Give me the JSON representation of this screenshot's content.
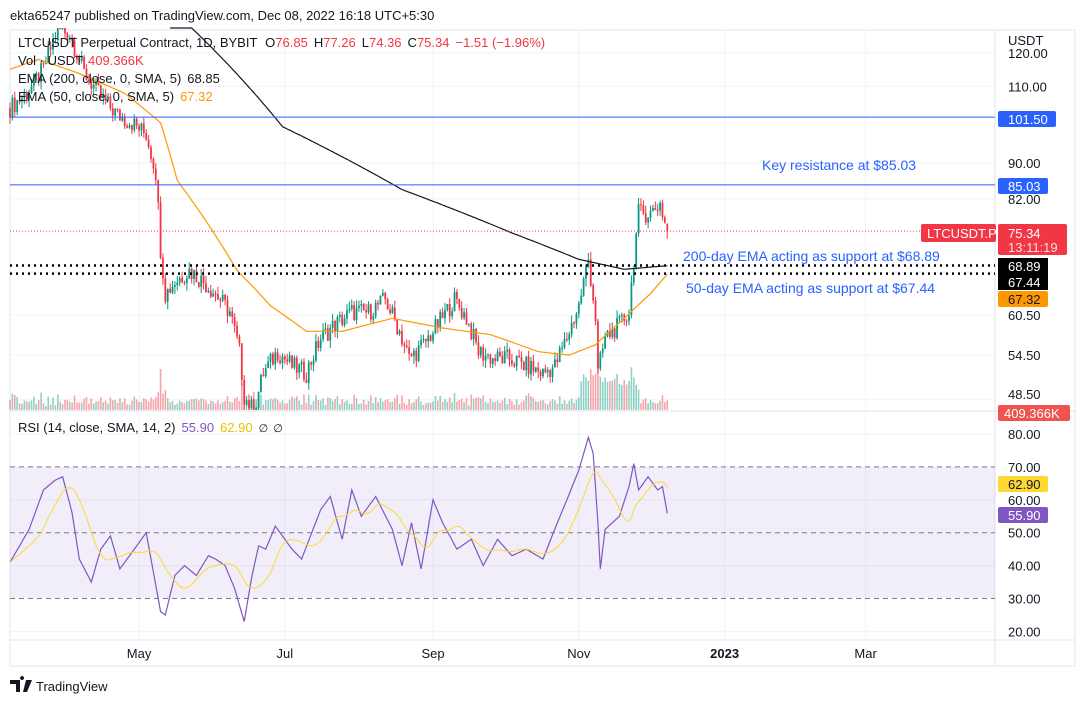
{
  "header": {
    "published": "ekta65247 published on TradingView.com, Dec 08, 2022 16:18 UTC+5:30"
  },
  "legend": {
    "symbol": "LTCUSDT Perpetual Contract, 1D, BYBIT",
    "o_label": "O",
    "o": "76.85",
    "h_label": "H",
    "h": "77.26",
    "l_label": "L",
    "l": "74.36",
    "c_label": "C",
    "c": "75.34",
    "change": "−1.51 (−1.96%)",
    "vol_label": "Vol · USDT",
    "vol": "409.366K",
    "ema200_label": "EMA (200, close, 0, SMA, 5)",
    "ema200": "68.85",
    "ema50_label": "EMA (50, close, 0, SMA, 5)",
    "ema50": "67.32",
    "rsi_label": "RSI (14, close, SMA, 14, 2)",
    "rsi": "55.90",
    "rsi_ma": "62.90",
    "na1": "∅",
    "na2": "∅"
  },
  "price_axis": {
    "currency": "USDT",
    "ticks": [
      "120.00",
      "110.00",
      "90.00",
      "82.00",
      "60.50",
      "54.50",
      "48.50"
    ]
  },
  "rsi_axis": {
    "ticks": [
      "80.00",
      "70.00",
      "60.00",
      "50.00",
      "40.00",
      "30.00",
      "20.00"
    ]
  },
  "time_axis": {
    "ticks": [
      "May",
      "Jul",
      "Sep",
      "Nov",
      "2023",
      "Mar"
    ]
  },
  "labels": {
    "r1": "101.50",
    "r2": "85.03",
    "sym": "LTCUSDT.P",
    "last": "75.34",
    "countdown": "13:11:19",
    "s1": "68.89",
    "s2": "67.44",
    "ema50": "67.32",
    "vol": "409.366K",
    "rsi_ma": "62.90",
    "rsi": "55.90"
  },
  "annotations": {
    "resistance": "Key resistance at $85.03",
    "ema200_support": "200-day EMA acting as support at $68.89",
    "ema50_support": "50-day EMA acting as support at $67.44"
  },
  "footer": {
    "brand": "TradingView"
  },
  "colors": {
    "up": "#089981",
    "down": "#f23645",
    "ema200": "#131722",
    "ema50": "#ff9800",
    "rsi": "#7e57c2",
    "rsi_ma": "#fdd835",
    "level": "#2962ff"
  },
  "chart_data": {
    "type": "candlestick",
    "scale": "log",
    "levels": [
      101.5,
      85.03,
      68.89,
      67.44
    ],
    "last_price": 75.34,
    "close_path": [
      [
        "2022-03-08",
        104
      ],
      [
        "2022-03-15",
        108
      ],
      [
        "2022-03-22",
        115
      ],
      [
        "2022-03-28",
        128
      ],
      [
        "2022-04-02",
        126
      ],
      [
        "2022-04-08",
        114
      ],
      [
        "2022-04-15",
        107
      ],
      [
        "2022-04-22",
        102
      ],
      [
        "2022-04-28",
        100
      ],
      [
        "2022-05-04",
        97
      ],
      [
        "2022-05-08",
        88
      ],
      [
        "2022-05-10",
        72
      ],
      [
        "2022-05-12",
        64
      ],
      [
        "2022-05-16",
        66
      ],
      [
        "2022-05-22",
        68
      ],
      [
        "2022-05-28",
        66
      ],
      [
        "2022-06-02",
        64
      ],
      [
        "2022-06-08",
        61
      ],
      [
        "2022-06-12",
        55
      ],
      [
        "2022-06-14",
        49
      ],
      [
        "2022-06-18",
        47
      ],
      [
        "2022-06-22",
        52
      ],
      [
        "2022-06-28",
        55
      ],
      [
        "2022-07-04",
        53
      ],
      [
        "2022-07-10",
        52
      ],
      [
        "2022-07-16",
        57
      ],
      [
        "2022-07-22",
        59
      ],
      [
        "2022-07-29",
        61
      ],
      [
        "2022-08-05",
        61
      ],
      [
        "2022-08-12",
        63
      ],
      [
        "2022-08-18",
        58
      ],
      [
        "2022-08-22",
        54
      ],
      [
        "2022-08-28",
        56
      ],
      [
        "2022-09-03",
        59
      ],
      [
        "2022-09-10",
        63
      ],
      [
        "2022-09-15",
        60
      ],
      [
        "2022-09-20",
        55
      ],
      [
        "2022-09-26",
        54
      ],
      [
        "2022-10-03",
        54
      ],
      [
        "2022-10-10",
        53
      ],
      [
        "2022-10-17",
        52
      ],
      [
        "2022-10-22",
        53
      ],
      [
        "2022-10-27",
        57
      ],
      [
        "2022-11-01",
        62
      ],
      [
        "2022-11-05",
        70
      ],
      [
        "2022-11-08",
        60
      ],
      [
        "2022-11-09",
        52
      ],
      [
        "2022-11-12",
        57
      ],
      [
        "2022-11-18",
        59
      ],
      [
        "2022-11-22",
        61
      ],
      [
        "2022-11-24",
        70
      ],
      [
        "2022-11-26",
        79
      ],
      [
        "2022-12-01",
        79
      ],
      [
        "2022-12-05",
        81
      ],
      [
        "2022-12-07",
        77
      ],
      [
        "2022-12-08",
        75.34
      ]
    ],
    "ema200": [
      [
        "2022-05-14",
        135
      ],
      [
        "2022-06-30",
        99
      ],
      [
        "2022-08-19",
        84
      ],
      [
        "2022-10-04",
        75
      ],
      [
        "2022-11-01",
        70
      ],
      [
        "2022-11-20",
        68.2
      ],
      [
        "2022-12-08",
        68.85
      ]
    ],
    "ema50": [
      [
        "2022-03-08",
        115
      ],
      [
        "2022-03-20",
        118
      ],
      [
        "2022-04-05",
        114
      ],
      [
        "2022-04-25",
        108
      ],
      [
        "2022-05-10",
        100
      ],
      [
        "2022-05-17",
        86
      ],
      [
        "2022-06-11",
        68
      ],
      [
        "2022-06-25",
        62
      ],
      [
        "2022-07-10",
        58
      ],
      [
        "2022-07-25",
        58
      ],
      [
        "2022-08-15",
        60
      ],
      [
        "2022-09-05",
        58.5
      ],
      [
        "2022-09-25",
        57.5
      ],
      [
        "2022-10-15",
        55
      ],
      [
        "2022-10-28",
        54.5
      ],
      [
        "2022-11-08",
        56
      ],
      [
        "2022-11-20",
        60
      ],
      [
        "2022-12-01",
        64
      ],
      [
        "2022-12-08",
        67.32
      ]
    ],
    "rsi": [
      [
        "2022-03-08",
        41
      ],
      [
        "2022-03-12",
        46
      ],
      [
        "2022-03-16",
        51
      ],
      [
        "2022-03-22",
        63
      ],
      [
        "2022-03-27",
        66
      ],
      [
        "2022-03-30",
        67
      ],
      [
        "2022-04-03",
        56
      ],
      [
        "2022-04-06",
        42
      ],
      [
        "2022-04-11",
        35
      ],
      [
        "2022-04-15",
        45
      ],
      [
        "2022-04-19",
        49
      ],
      [
        "2022-04-23",
        39
      ],
      [
        "2022-04-29",
        45
      ],
      [
        "2022-05-04",
        50
      ],
      [
        "2022-05-06",
        42
      ],
      [
        "2022-05-10",
        26
      ],
      [
        "2022-05-12",
        25
      ],
      [
        "2022-05-16",
        37
      ],
      [
        "2022-05-20",
        40
      ],
      [
        "2022-05-25",
        37
      ],
      [
        "2022-05-30",
        43
      ],
      [
        "2022-06-02",
        42
      ],
      [
        "2022-06-06",
        40
      ],
      [
        "2022-06-10",
        33
      ],
      [
        "2022-06-14",
        23
      ],
      [
        "2022-06-17",
        36
      ],
      [
        "2022-06-20",
        46
      ],
      [
        "2022-06-23",
        45
      ],
      [
        "2022-06-27",
        52
      ],
      [
        "2022-07-04",
        45
      ],
      [
        "2022-07-08",
        42
      ],
      [
        "2022-07-16",
        57
      ],
      [
        "2022-07-20",
        61
      ],
      [
        "2022-07-25",
        48
      ],
      [
        "2022-07-29",
        63
      ],
      [
        "2022-08-02",
        55
      ],
      [
        "2022-08-08",
        61
      ],
      [
        "2022-08-15",
        51
      ],
      [
        "2022-08-19",
        40
      ],
      [
        "2022-08-23",
        53
      ],
      [
        "2022-08-27",
        39
      ],
      [
        "2022-09-01",
        60
      ],
      [
        "2022-09-05",
        53
      ],
      [
        "2022-09-11",
        45
      ],
      [
        "2022-09-17",
        48
      ],
      [
        "2022-09-22",
        40
      ],
      [
        "2022-09-28",
        48
      ],
      [
        "2022-10-04",
        43
      ],
      [
        "2022-10-10",
        45
      ],
      [
        "2022-10-17",
        42
      ],
      [
        "2022-10-23",
        53
      ],
      [
        "2022-10-27",
        60
      ],
      [
        "2022-11-01",
        69
      ],
      [
        "2022-11-05",
        79
      ],
      [
        "2022-11-07",
        74
      ],
      [
        "2022-11-09",
        53
      ],
      [
        "2022-11-10",
        39
      ],
      [
        "2022-11-12",
        51
      ],
      [
        "2022-11-15",
        53
      ],
      [
        "2022-11-18",
        55
      ],
      [
        "2022-11-22",
        64
      ],
      [
        "2022-11-24",
        71
      ],
      [
        "2022-11-26",
        63
      ],
      [
        "2022-11-30",
        67
      ],
      [
        "2022-12-04",
        63
      ],
      [
        "2022-12-06",
        64
      ],
      [
        "2022-12-08",
        55.9
      ]
    ],
    "rsi_levels": [
      70,
      50,
      30
    ],
    "rsi_ylim": [
      20,
      80
    ]
  }
}
